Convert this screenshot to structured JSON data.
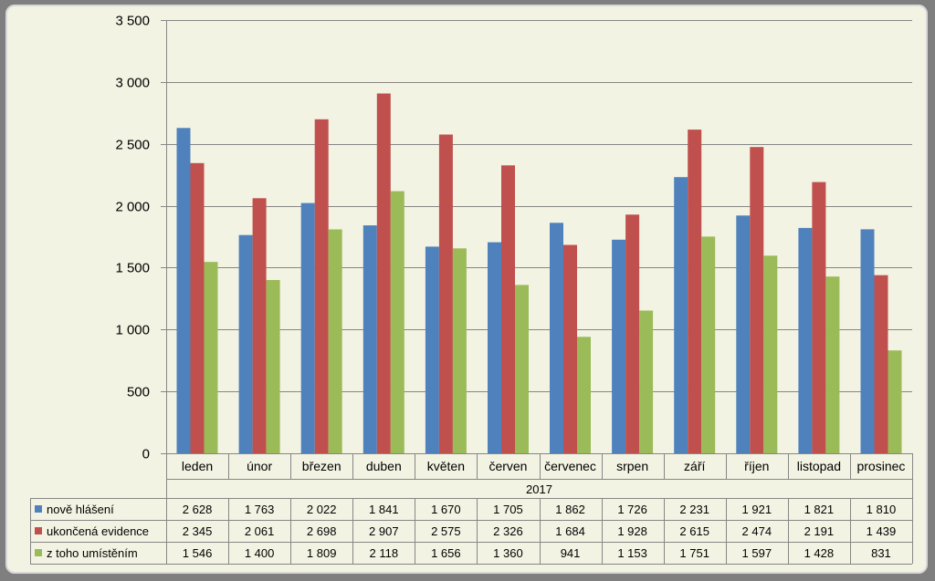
{
  "chart_data": {
    "type": "bar",
    "group_label": "2017",
    "categories": [
      "leden",
      "únor",
      "březen",
      "duben",
      "květen",
      "červen",
      "červenec",
      "srpen",
      "září",
      "říjen",
      "listopad",
      "prosinec"
    ],
    "series": [
      {
        "name": "nově hlášení",
        "color": "#4f81bd",
        "values": [
          2628,
          1763,
          2022,
          1841,
          1670,
          1705,
          1862,
          1726,
          2231,
          1921,
          1821,
          1810
        ],
        "labels": [
          "2 628",
          "1 763",
          "2 022",
          "1 841",
          "1 670",
          "1 705",
          "1 862",
          "1 726",
          "2 231",
          "1 921",
          "1 821",
          "1 810"
        ]
      },
      {
        "name": "ukončená evidence",
        "color": "#c0504d",
        "values": [
          2345,
          2061,
          2698,
          2907,
          2575,
          2326,
          1684,
          1928,
          2615,
          2474,
          2191,
          1439
        ],
        "labels": [
          "2 345",
          "2 061",
          "2 698",
          "2 907",
          "2 575",
          "2 326",
          "1 684",
          "1 928",
          "2 615",
          "2 474",
          "2 191",
          "1 439"
        ]
      },
      {
        "name": "z toho umístěním",
        "color": "#9bbb59",
        "values": [
          1546,
          1400,
          1809,
          2118,
          1656,
          1360,
          941,
          1153,
          1751,
          1597,
          1428,
          831
        ],
        "labels": [
          "1 546",
          "1 400",
          "1 809",
          "2 118",
          "1 656",
          "1 360",
          "941",
          "1 153",
          "1 751",
          "1 597",
          "1 428",
          "831"
        ]
      }
    ],
    "ylim": [
      0,
      3500
    ],
    "yticks": [
      0,
      500,
      1000,
      1500,
      2000,
      2500,
      3000,
      3500
    ],
    "ytick_labels": [
      "0",
      "500",
      "1 000",
      "1 500",
      "2 000",
      "2 500",
      "3 000",
      "3 500"
    ],
    "grid": true,
    "legend": "data-table"
  }
}
